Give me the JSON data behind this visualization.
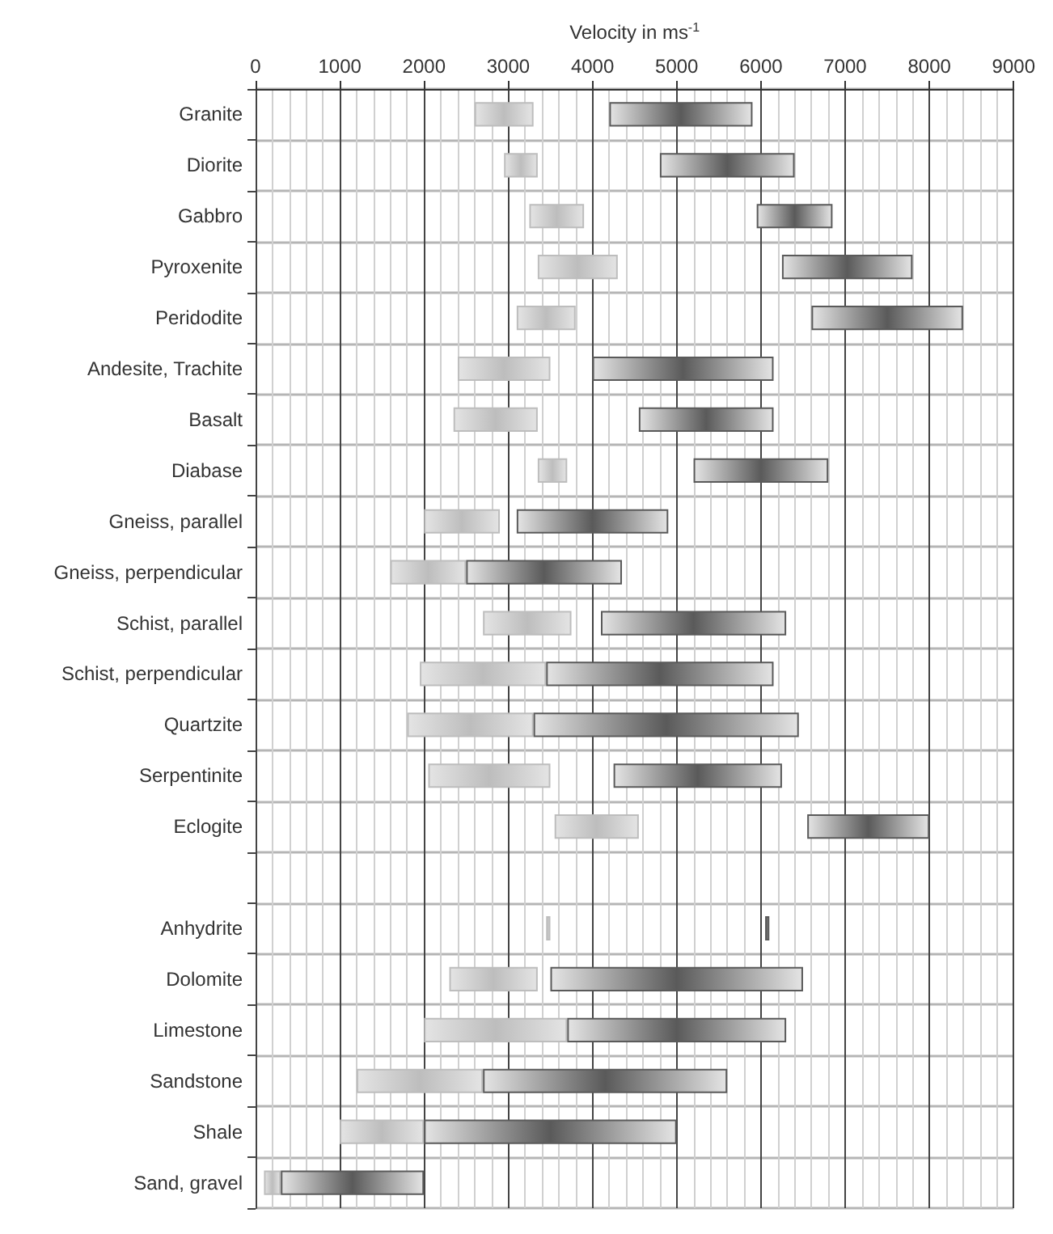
{
  "chart_data": {
    "type": "bar",
    "orientation": "horizontal",
    "xlabel": "Velocity in ms$^{-1}$",
    "categories": [
      "Granite",
      "Diorite",
      "Gabbro",
      "Pyroxenite",
      "Peridodite",
      "Andesite, Trachite",
      "Basalt",
      "Diabase",
      "Gneiss, parallel",
      "Gneiss, perpendicular",
      "Schist, parallel",
      "Schist, perpendicular",
      "Quartzite",
      "Serpentinite",
      "Eclogite",
      null,
      "Anhydrite",
      "Dolomite",
      "Limestone",
      "Sandstone",
      "Shale",
      "Sand, gravel"
    ],
    "series": [
      {
        "color": "#bdbdbd",
        "base": [
          2600,
          2950,
          3250,
          3350,
          3100,
          2400,
          2350,
          3350,
          2000,
          1600,
          2700,
          1950,
          1800,
          2050,
          3550,
          null,
          3450,
          2300,
          2000,
          1200,
          1000,
          100
        ],
        "values": [
          700,
          400,
          650,
          950,
          700,
          1100,
          1000,
          350,
          900,
          900,
          1050,
          1500,
          1500,
          1450,
          1000,
          null,
          50,
          1050,
          1700,
          1500,
          1000,
          200
        ]
      },
      {
        "color": "#5a5a5a",
        "base": [
          4200,
          4800,
          5950,
          6250,
          6600,
          4000,
          4550,
          5200,
          3100,
          2500,
          4100,
          3450,
          3300,
          4250,
          6550,
          null,
          6050,
          3500,
          3700,
          2700,
          2000,
          300
        ],
        "values": [
          1700,
          1600,
          900,
          1550,
          1800,
          2150,
          1600,
          1600,
          1800,
          1850,
          2200,
          2700,
          3150,
          2000,
          1450,
          null,
          50,
          3000,
          2600,
          2900,
          3000,
          1700
        ]
      }
    ],
    "xlim": [
      0,
      9000
    ],
    "xticks": [
      0,
      1000,
      2000,
      3000,
      4000,
      5000,
      6000,
      7000,
      8000,
      9000
    ],
    "grid": true
  }
}
